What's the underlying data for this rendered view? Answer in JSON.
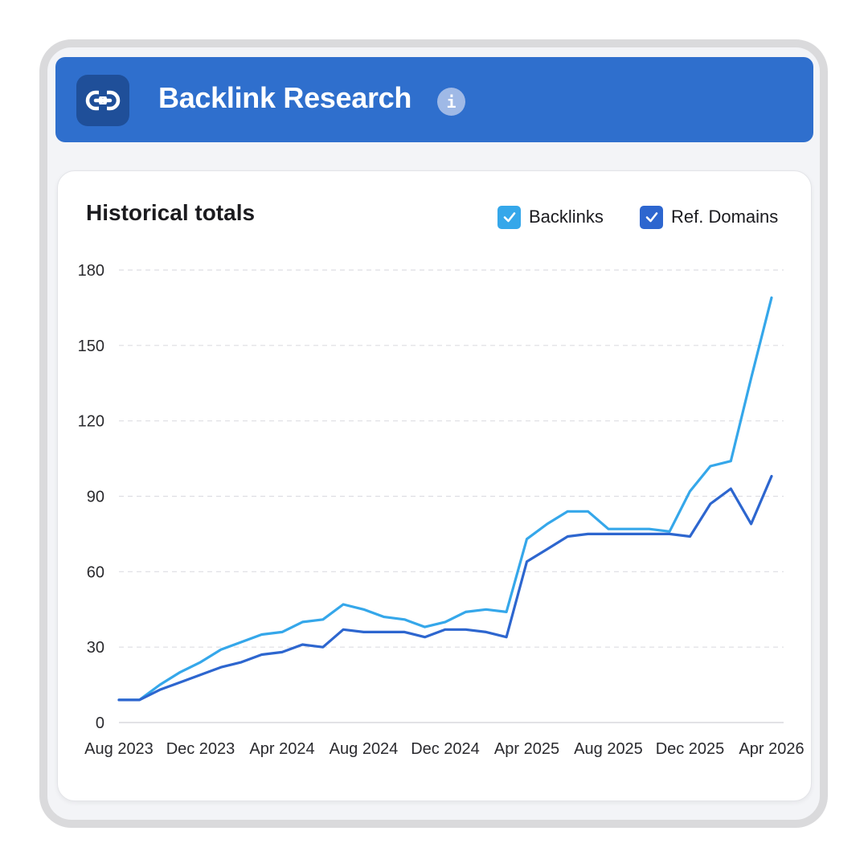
{
  "header": {
    "title": "Backlink Research",
    "app_icon": "link-icon",
    "info_icon": "info-icon",
    "info_glyph": "i",
    "color": "#2f6fcd"
  },
  "card": {
    "title": "Historical totals"
  },
  "legend": [
    {
      "label": "Backlinks",
      "color": "#35a7ea",
      "checked": true
    },
    {
      "label": "Ref. Domains",
      "color": "#2d66cf",
      "checked": true
    }
  ],
  "chart_data": {
    "type": "line",
    "title": "Historical totals",
    "xlabel": "",
    "ylabel": "",
    "ylim": [
      0,
      180
    ],
    "yticks": [
      0,
      30,
      60,
      90,
      120,
      150,
      180
    ],
    "xlim": [
      "2023-08",
      "2026-04"
    ],
    "xticks": [
      "Aug 2023",
      "Dec 2023",
      "Apr 2024",
      "Aug 2024",
      "Dec 2024",
      "Apr 2025",
      "Aug 2025",
      "Dec 2025",
      "Apr 2026"
    ],
    "grid": "horizontal dashed",
    "legend_position": "top-right",
    "x": [
      "2023-08",
      "2023-09",
      "2023-10",
      "2023-11",
      "2023-12",
      "2024-01",
      "2024-02",
      "2024-03",
      "2024-04",
      "2024-05",
      "2024-06",
      "2024-07",
      "2024-08",
      "2024-09",
      "2024-10",
      "2024-11",
      "2024-12",
      "2025-01",
      "2025-02",
      "2025-03",
      "2025-04",
      "2025-05",
      "2025-06",
      "2025-07",
      "2025-08",
      "2025-09",
      "2025-10",
      "2025-11",
      "2025-12",
      "2026-01",
      "2026-02",
      "2026-03",
      "2026-04"
    ],
    "series": [
      {
        "name": "Backlinks",
        "color": "#35a7ea",
        "values": [
          9,
          9,
          15,
          20,
          24,
          29,
          32,
          35,
          36,
          40,
          41,
          47,
          45,
          42,
          41,
          38,
          40,
          44,
          45,
          44,
          73,
          79,
          84,
          84,
          77,
          77,
          77,
          76,
          92,
          102,
          104,
          137,
          169
        ]
      },
      {
        "name": "Ref. Domains",
        "color": "#2d66cf",
        "values": [
          9,
          9,
          13,
          16,
          19,
          22,
          24,
          27,
          28,
          31,
          30,
          37,
          36,
          36,
          36,
          34,
          37,
          37,
          36,
          34,
          64,
          69,
          74,
          75,
          75,
          75,
          75,
          75,
          74,
          87,
          93,
          79,
          98
        ]
      }
    ]
  }
}
